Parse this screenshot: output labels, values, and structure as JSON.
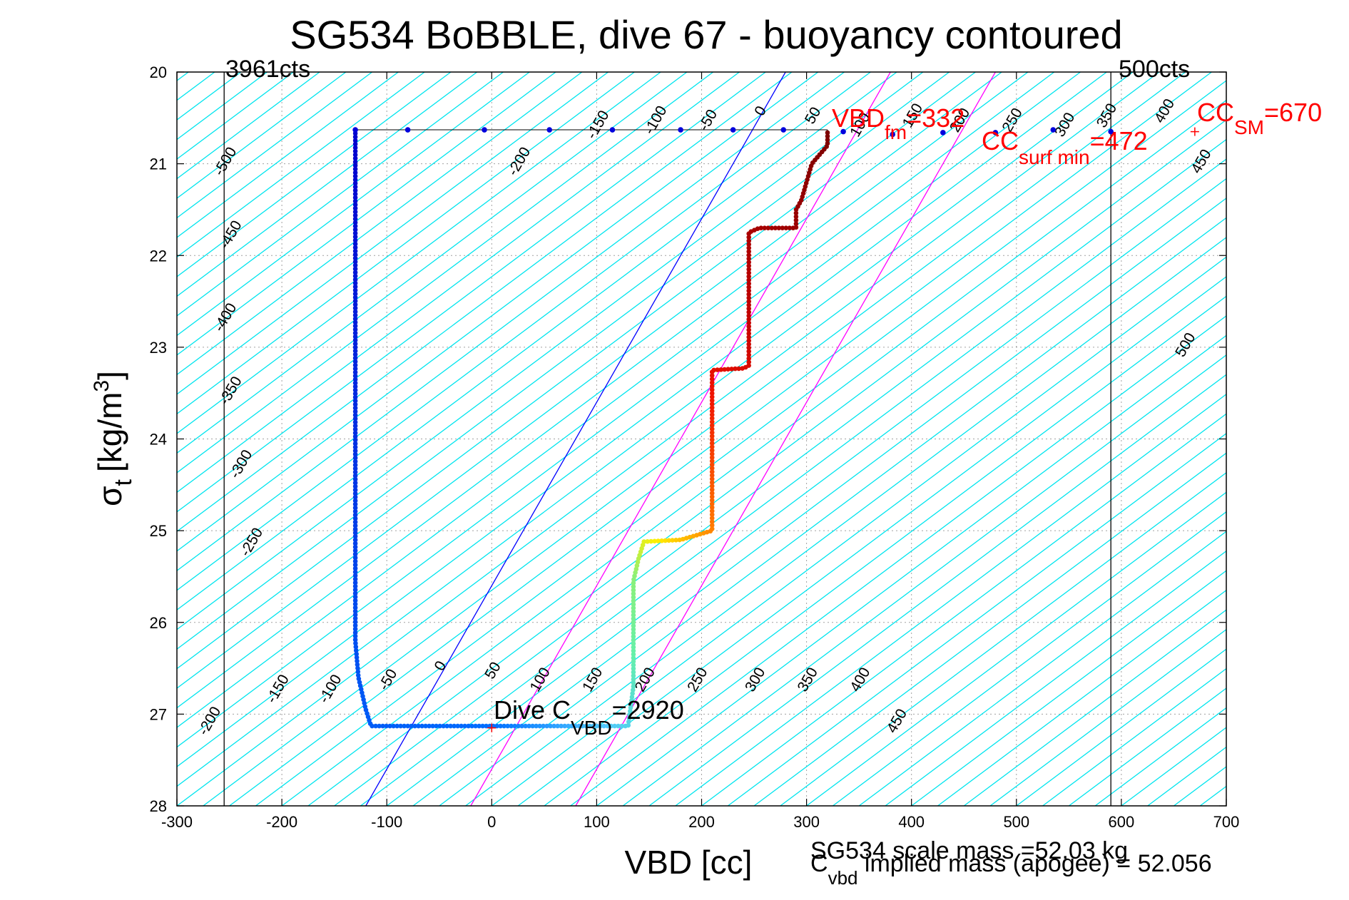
{
  "chart_data": {
    "type": "scatter",
    "title": "SG534 BoBBLE, dive 67 - buoyancy contoured",
    "xlabel": "VBD [cc]",
    "ylabel_main": "σ",
    "ylabel_sub": "t",
    "ylabel_unit": "[kg/m",
    "ylabel_sup": "3",
    "ylabel_close": "]",
    "xlim": [
      -300,
      700
    ],
    "ylim": [
      20,
      28
    ],
    "y_reversed": true,
    "grid": true,
    "x_ticks": [
      -300,
      -200,
      -100,
      0,
      100,
      200,
      300,
      400,
      500,
      600,
      700
    ],
    "y_ticks": [
      20,
      21,
      22,
      23,
      24,
      25,
      26,
      27,
      28
    ],
    "buoyancy_contour_slope_cc_per_sigma": 117,
    "buoyancy_contours": [
      -500,
      -450,
      -400,
      -350,
      -300,
      -250,
      -200,
      -150,
      -100,
      -50,
      0,
      50,
      100,
      150,
      200,
      250,
      300,
      350,
      400,
      450,
      500
    ],
    "top_contour_labels": [
      {
        "text": "-500",
        "x": -250,
        "y": 21.0
      },
      {
        "text": "-450",
        "x": -245,
        "y": 21.8
      },
      {
        "text": "-400",
        "x": -250,
        "y": 22.7
      },
      {
        "text": "-350",
        "x": -245,
        "y": 23.5
      },
      {
        "text": "-300",
        "x": -235,
        "y": 24.3
      },
      {
        "text": "-250",
        "x": -225,
        "y": 25.15
      },
      {
        "text": "-200",
        "x": 30,
        "y": 21.0
      },
      {
        "text": "-150",
        "x": 105,
        "y": 20.6
      },
      {
        "text": "-100",
        "x": 160,
        "y": 20.55
      },
      {
        "text": "-50",
        "x": 210,
        "y": 20.55
      },
      {
        "text": "0",
        "x": 260,
        "y": 20.45
      },
      {
        "text": "50",
        "x": 310,
        "y": 20.5
      },
      {
        "text": "100",
        "x": 355,
        "y": 20.6
      },
      {
        "text": "150",
        "x": 405,
        "y": 20.5
      },
      {
        "text": "200",
        "x": 450,
        "y": 20.55
      },
      {
        "text": "250",
        "x": 500,
        "y": 20.55
      },
      {
        "text": "300",
        "x": 550,
        "y": 20.6
      },
      {
        "text": "350",
        "x": 590,
        "y": 20.5
      },
      {
        "text": "400",
        "x": 645,
        "y": 20.45
      },
      {
        "text": "450",
        "x": 680,
        "y": 21.0
      },
      {
        "text": "500",
        "x": 665,
        "y": 23.0
      }
    ],
    "bottom_contour_labels": [
      {
        "text": "-200",
        "x": -265,
        "y": 27.1
      },
      {
        "text": "-150",
        "x": -200,
        "y": 26.75
      },
      {
        "text": "-100",
        "x": -150,
        "y": 26.75
      },
      {
        "text": "-50",
        "x": -95,
        "y": 26.65
      },
      {
        "text": "0",
        "x": -45,
        "y": 26.5
      },
      {
        "text": "50",
        "x": 5,
        "y": 26.55
      },
      {
        "text": "100",
        "x": 50,
        "y": 26.65
      },
      {
        "text": "150",
        "x": 100,
        "y": 26.65
      },
      {
        "text": "200",
        "x": 150,
        "y": 26.65
      },
      {
        "text": "250",
        "x": 200,
        "y": 26.65
      },
      {
        "text": "300",
        "x": 255,
        "y": 26.65
      },
      {
        "text": "350",
        "x": 305,
        "y": 26.65
      },
      {
        "text": "400",
        "x": 355,
        "y": 26.65
      },
      {
        "text": "450",
        "x": 390,
        "y": 27.1
      }
    ],
    "reference_lines": [
      {
        "name": "3961cts",
        "x": -255
      },
      {
        "name": "500cts",
        "x": 590
      }
    ],
    "neutral_line": {
      "color": "#0000ff",
      "points": [
        [
          -120,
          28
        ],
        [
          280,
          20
        ]
      ]
    },
    "magenta_lines": [
      {
        "color": "#ff00ff",
        "points": [
          [
            -20,
            28
          ],
          [
            380,
            20
          ]
        ]
      },
      {
        "color": "#ff00ff",
        "points": [
          [
            80,
            28
          ],
          [
            480,
            20
          ]
        ]
      }
    ],
    "descent_series": {
      "name": "descent",
      "path": [
        [
          320,
          20.63
        ],
        [
          -130,
          20.63
        ],
        [
          -130,
          26.2
        ],
        [
          -127,
          26.6
        ],
        [
          -120,
          26.95
        ],
        [
          -115,
          27.13
        ],
        [
          130,
          27.13
        ],
        [
          135,
          26.7
        ],
        [
          135,
          25.55
        ],
        [
          140,
          25.3
        ],
        [
          145,
          25.12
        ],
        [
          180,
          25.1
        ],
        [
          210,
          25.0
        ],
        [
          210,
          23.25
        ],
        [
          240,
          23.23
        ],
        [
          245,
          23.2
        ],
        [
          245,
          21.75
        ],
        [
          255,
          21.7
        ],
        [
          290,
          21.7
        ],
        [
          290,
          21.5
        ],
        [
          295,
          21.4
        ],
        [
          305,
          21.0
        ],
        [
          320,
          20.8
        ],
        [
          320,
          20.63
        ]
      ]
    },
    "surface_points": [
      {
        "x": -130,
        "y": 20.63
      },
      {
        "x": -80,
        "y": 20.63
      },
      {
        "x": -7,
        "y": 20.63
      },
      {
        "x": 55,
        "y": 20.63
      },
      {
        "x": 115,
        "y": 20.63
      },
      {
        "x": 180,
        "y": 20.63
      },
      {
        "x": 230,
        "y": 20.63
      },
      {
        "x": 278,
        "y": 20.63
      },
      {
        "x": 335,
        "y": 20.65
      },
      {
        "x": 382,
        "y": 20.68
      },
      {
        "x": 430,
        "y": 20.66
      },
      {
        "x": 480,
        "y": 20.66
      },
      {
        "x": 535,
        "y": 20.63
      },
      {
        "x": 590,
        "y": 20.65
      }
    ],
    "markers": [
      {
        "x": 670,
        "y": 20.65,
        "color": "#ff0000"
      },
      {
        "x": 0,
        "y": 27.15,
        "color": "#ff0000"
      }
    ],
    "annotations": {
      "vbd_fm_main": "VBD",
      "vbd_fm_sub": "fm",
      "vbd_fm_value": "=332",
      "cc_surf_main": "CC",
      "cc_surf_sub": "surf min",
      "cc_surf_value": "=472",
      "cc_sm_main": "CC",
      "cc_sm_sub": "SM",
      "cc_sm_value": "=670",
      "dive_main": "Dive C",
      "dive_sub": "VBD",
      "dive_value": "=2920",
      "cts_left": "3961cts",
      "cts_right": "500cts",
      "footer_scale": "SG534 scale mass =52.03 kg",
      "footer_cvbd_main": "C",
      "footer_cvbd_sub": "vbd",
      "footer_cvbd_rest": " implied mass (apogee) = 52.056"
    }
  }
}
